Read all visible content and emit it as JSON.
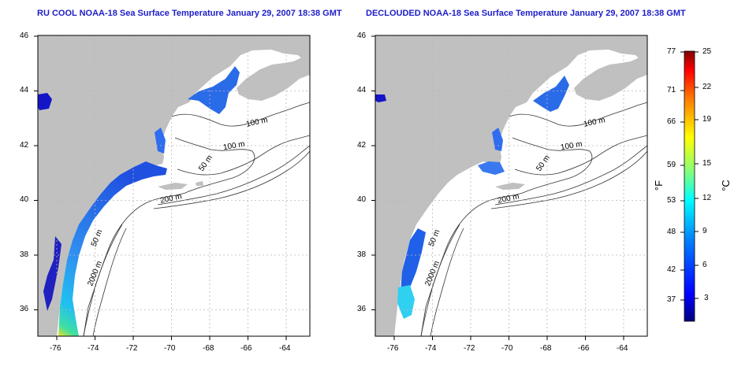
{
  "panels": [
    {
      "title": "RU COOL NOAA-18 Sea Surface Temperature January 29, 2007 18:38 GMT",
      "y_ticks": [
        "46",
        "44",
        "42",
        "40",
        "38",
        "36"
      ],
      "x_ticks": [
        "-76",
        "-74",
        "-72",
        "-70",
        "-68",
        "-66",
        "-64"
      ],
      "contour_labels": [
        "100 m",
        "100 m",
        "50 m",
        "200 m",
        "50 m",
        "2000 m"
      ]
    },
    {
      "title": "DECLOUDED NOAA-18 Sea Surface Temperature January 29, 2007 18:38 GMT",
      "y_ticks": [
        "46",
        "44",
        "42",
        "40",
        "38",
        "36"
      ],
      "x_ticks": [
        "-76",
        "-74",
        "-72",
        "-70",
        "-68",
        "-66",
        "-64"
      ],
      "contour_labels": [
        "100 m",
        "100 m",
        "50 m",
        "200 m",
        "50 m",
        "2000 m"
      ]
    }
  ],
  "colorbar": {
    "fahrenheit_ticks": [
      "77",
      "71",
      "66",
      "59",
      "53",
      "48",
      "42",
      "37"
    ],
    "celsius_ticks": [
      "25",
      "22",
      "19",
      "15",
      "12",
      "9",
      "6",
      "3"
    ],
    "fahrenheit_unit": "°F",
    "celsius_unit": "°C",
    "celsius_range": [
      0,
      25
    ]
  },
  "colors": {
    "land": "#c0c0c0",
    "title": "#1d1dc8",
    "grid": "#b8b8b8"
  }
}
